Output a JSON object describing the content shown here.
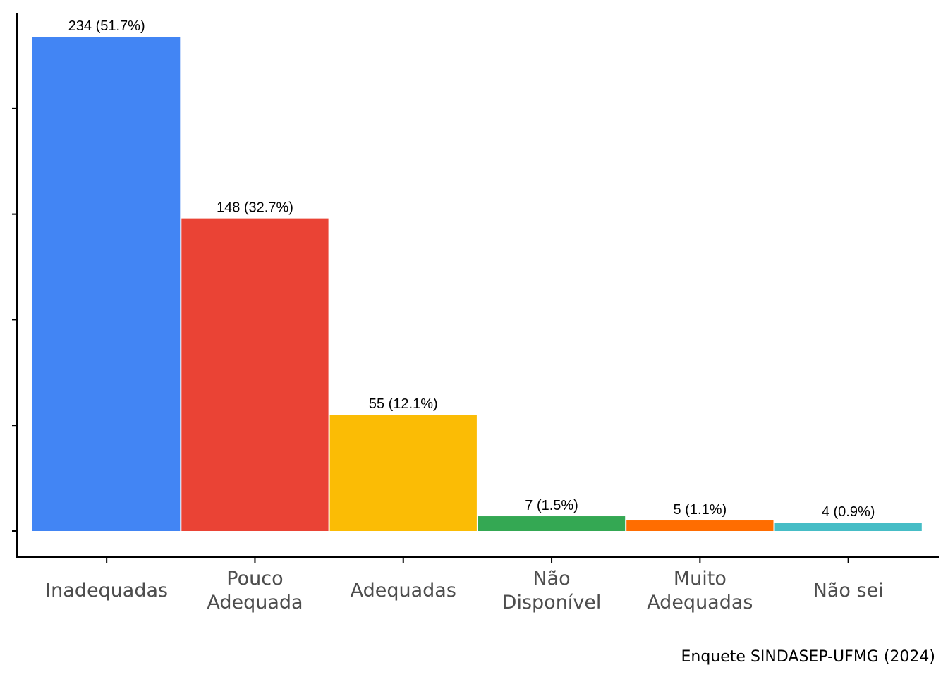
{
  "chart_data": {
    "type": "bar",
    "categories": [
      [
        "Inadequadas"
      ],
      [
        "Pouco",
        "Adequada"
      ],
      [
        "Adequadas"
      ],
      [
        "Não",
        "Disponível"
      ],
      [
        "Muito",
        "Adequadas"
      ],
      [
        "Não sei"
      ]
    ],
    "values": [
      234,
      148,
      55,
      7,
      5,
      4
    ],
    "data_labels": [
      "234 (51.7%)",
      "148 (32.7%)",
      "55 (12.1%)",
      "7 (1.5%)",
      "5 (1.1%)",
      "4 (0.9%)"
    ],
    "colors": [
      "#4285f4",
      "#ea4335",
      "#fbbc05",
      "#34a853",
      "#ff6d01",
      "#46bdc6"
    ],
    "ylim": [
      0,
      234
    ],
    "grid": false,
    "legend": "none",
    "caption": "Enquete SINDASEP-UFMG (2024)"
  }
}
